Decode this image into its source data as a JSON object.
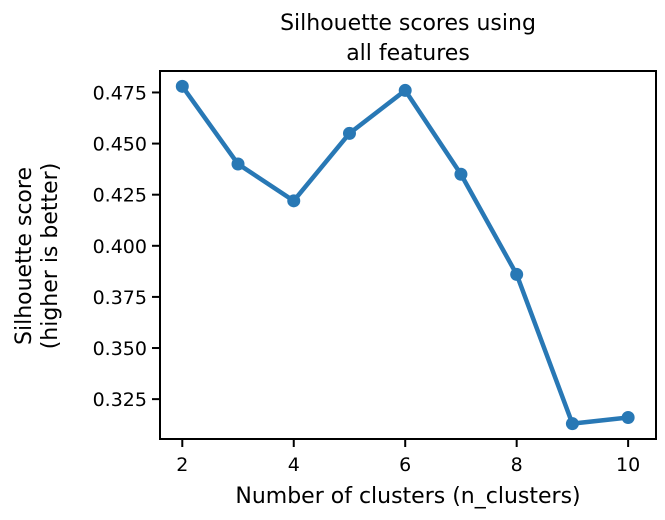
{
  "chart_data": {
    "type": "line",
    "title_lines": [
      "Silhouette scores using",
      "all features"
    ],
    "xlabel": "Number of clusters (n_clusters)",
    "ylabel_lines": [
      "Silhouette score",
      "(higher is better)"
    ],
    "x": [
      2,
      3,
      4,
      5,
      6,
      7,
      8,
      9,
      10
    ],
    "series": [
      {
        "values": [
          0.478,
          0.44,
          0.422,
          0.455,
          0.476,
          0.435,
          0.386,
          0.313,
          0.316
        ],
        "color": "#2878b5",
        "marker": "circle"
      }
    ],
    "xticks": [
      2,
      4,
      6,
      8,
      10
    ],
    "xtick_labels": [
      "2",
      "4",
      "6",
      "8",
      "10"
    ],
    "yticks": [
      0.325,
      0.35,
      0.375,
      0.4,
      0.425,
      0.45,
      0.475
    ],
    "ytick_labels": [
      "0.325",
      "0.350",
      "0.375",
      "0.400",
      "0.425",
      "0.450",
      "0.475"
    ],
    "xlim": [
      1.6,
      10.5
    ],
    "ylim": [
      0.3055,
      0.4855
    ],
    "grid": false,
    "legend": false
  }
}
